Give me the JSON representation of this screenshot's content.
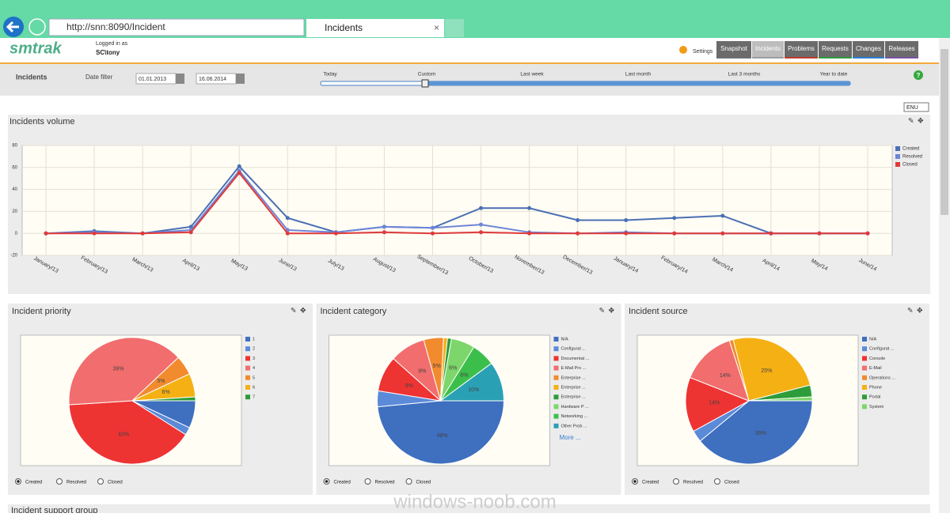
{
  "browser": {
    "url": "http://snn:8090/Incident",
    "tab": "Incidents"
  },
  "header": {
    "logo": "smtrak",
    "logged_in_label": "Logged in as",
    "user": "SC\\tony",
    "settings": "Settings",
    "nav": [
      "Snapshot",
      "Incidents",
      "Problems",
      "Requests",
      "Changes",
      "Releases"
    ]
  },
  "filter": {
    "title": "Incidents",
    "date_filter": "Date filter",
    "from": "01.01.2013",
    "to": "16.06.2014",
    "presets": [
      "Today",
      "Custom",
      "Last week",
      "Last month",
      "Last 3 months",
      "Year to date"
    ]
  },
  "language": "ENU",
  "chart_data": [
    {
      "type": "line",
      "title": "Incidents volume",
      "categories": [
        "January/13",
        "February/13",
        "March/13",
        "April/13",
        "May/13",
        "June/13",
        "July/13",
        "August/13",
        "September/13",
        "October/13",
        "November/13",
        "December/13",
        "January/14",
        "February/14",
        "March/14",
        "April/14",
        "May/14",
        "June/14"
      ],
      "series": [
        {
          "name": "Created",
          "color": "#4a6fb5",
          "values": [
            0,
            2,
            0,
            6,
            61,
            14,
            1,
            6,
            5,
            23,
            23,
            12,
            12,
            14,
            16,
            0,
            0,
            0
          ]
        },
        {
          "name": "Resolved",
          "color": "#6f85d8",
          "values": [
            0,
            1,
            0,
            3,
            57,
            3,
            1,
            6,
            5,
            8,
            1,
            0,
            1,
            0,
            0,
            0,
            0,
            0
          ]
        },
        {
          "name": "Closed",
          "color": "#e03a3a",
          "values": [
            0,
            0,
            0,
            1,
            55,
            0,
            0,
            1,
            0,
            1,
            0,
            0,
            0,
            0,
            0,
            0,
            0,
            0
          ]
        }
      ],
      "ylim": [
        -20,
        80
      ],
      "yticks": [
        -20,
        0,
        20,
        40,
        60,
        80
      ],
      "grid": true,
      "legend": "top-right"
    },
    {
      "type": "pie",
      "title": "Incident priority",
      "categories": [
        "1",
        "2",
        "3",
        "4",
        "5",
        "6",
        "7"
      ],
      "values": [
        7,
        2,
        40,
        39,
        5,
        6,
        1
      ],
      "value_labels": [
        null,
        null,
        "40%",
        "39%",
        "5%",
        "6%",
        null
      ],
      "colors": [
        "#3f6fbf",
        "#5b8ad8",
        "#ee3333",
        "#f26d6d",
        "#f28a2e",
        "#f5b013",
        "#2e9c3a"
      ],
      "options": [
        "Created",
        "Resolved",
        "Closed"
      ]
    },
    {
      "type": "pie",
      "title": "Incident category",
      "categories": [
        "N/A",
        "Configurat ...",
        "Documentat ...",
        "E-Mail Pro ...",
        "Enterprise ...",
        "Enterprise ...",
        "Enterprise ...",
        "Hardware P ...",
        "Networking ...",
        "Other Prob ..."
      ],
      "values": [
        48,
        4,
        9,
        9,
        5,
        1,
        1,
        6,
        6,
        10
      ],
      "value_labels": [
        "48%",
        null,
        "9%",
        "9%",
        "5%",
        null,
        null,
        "6%",
        "6%",
        "10%"
      ],
      "colors": [
        "#3f6fbf",
        "#5b8ad8",
        "#ee3333",
        "#f26d6d",
        "#f28a2e",
        "#f5b013",
        "#2e9c3a",
        "#7cd66b",
        "#3cbf4a",
        "#2aa0b4"
      ],
      "more": "More ...",
      "options": [
        "Created",
        "Resolved",
        "Closed"
      ]
    },
    {
      "type": "pie",
      "title": "Incident source",
      "categories": [
        "N/A",
        "Configurat ...",
        "Console",
        "E-Mail",
        "Operations ...",
        "Phone",
        "Portal",
        "System"
      ],
      "values": [
        39,
        3,
        14,
        14,
        1,
        25,
        3,
        1
      ],
      "value_labels": [
        "39%",
        null,
        "14%",
        "14%",
        null,
        "25%",
        null,
        null
      ],
      "colors": [
        "#3f6fbf",
        "#5b8ad8",
        "#ee3333",
        "#f26d6d",
        "#f28a2e",
        "#f5b013",
        "#2e9c3a",
        "#7cd66b"
      ],
      "options": [
        "Created",
        "Resolved",
        "Closed"
      ]
    }
  ],
  "next_panel": "Incident support group",
  "watermark": "windows-noob.com"
}
